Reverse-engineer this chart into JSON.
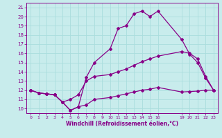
{
  "xlabel": "Windchill (Refroidissement éolien,°C)",
  "bg_color": "#c8ecec",
  "line_color": "#880088",
  "grid_color": "#aadddd",
  "xlim": [
    -0.5,
    23.5
  ],
  "ylim": [
    9.5,
    21.5
  ],
  "xticks": [
    0,
    1,
    2,
    3,
    4,
    5,
    6,
    7,
    8,
    9,
    10,
    11,
    12,
    13,
    14,
    15,
    16,
    19,
    20,
    21,
    22,
    23
  ],
  "yticks": [
    10,
    11,
    12,
    13,
    14,
    15,
    16,
    17,
    18,
    19,
    20,
    21
  ],
  "series1_x": [
    0,
    1,
    2,
    3,
    4,
    5,
    6,
    7,
    8,
    10,
    11,
    12,
    13,
    14,
    15,
    16,
    19,
    20,
    21,
    22,
    23
  ],
  "series1_y": [
    12.0,
    11.7,
    11.6,
    11.5,
    10.7,
    9.8,
    10.2,
    10.4,
    11.0,
    11.2,
    11.4,
    11.6,
    11.8,
    12.0,
    12.1,
    12.3,
    11.8,
    11.85,
    11.9,
    12.0,
    12.0
  ],
  "series2_x": [
    0,
    1,
    2,
    3,
    4,
    5,
    6,
    7,
    8,
    10,
    11,
    12,
    13,
    14,
    15,
    16,
    19,
    20,
    21,
    22,
    23
  ],
  "series2_y": [
    12.0,
    11.7,
    11.6,
    11.5,
    10.7,
    9.8,
    10.2,
    13.4,
    15.0,
    16.5,
    18.7,
    19.0,
    20.3,
    20.6,
    20.0,
    20.6,
    17.5,
    15.9,
    15.0,
    13.3,
    12.0
  ],
  "series3_x": [
    0,
    1,
    2,
    3,
    4,
    5,
    6,
    7,
    8,
    10,
    11,
    12,
    13,
    14,
    15,
    16,
    19,
    20,
    21,
    22,
    23
  ],
  "series3_y": [
    12.0,
    11.7,
    11.6,
    11.5,
    10.7,
    11.0,
    11.5,
    13.0,
    13.5,
    13.7,
    14.0,
    14.3,
    14.7,
    15.1,
    15.4,
    15.7,
    16.2,
    16.0,
    15.4,
    13.5,
    12.0
  ]
}
